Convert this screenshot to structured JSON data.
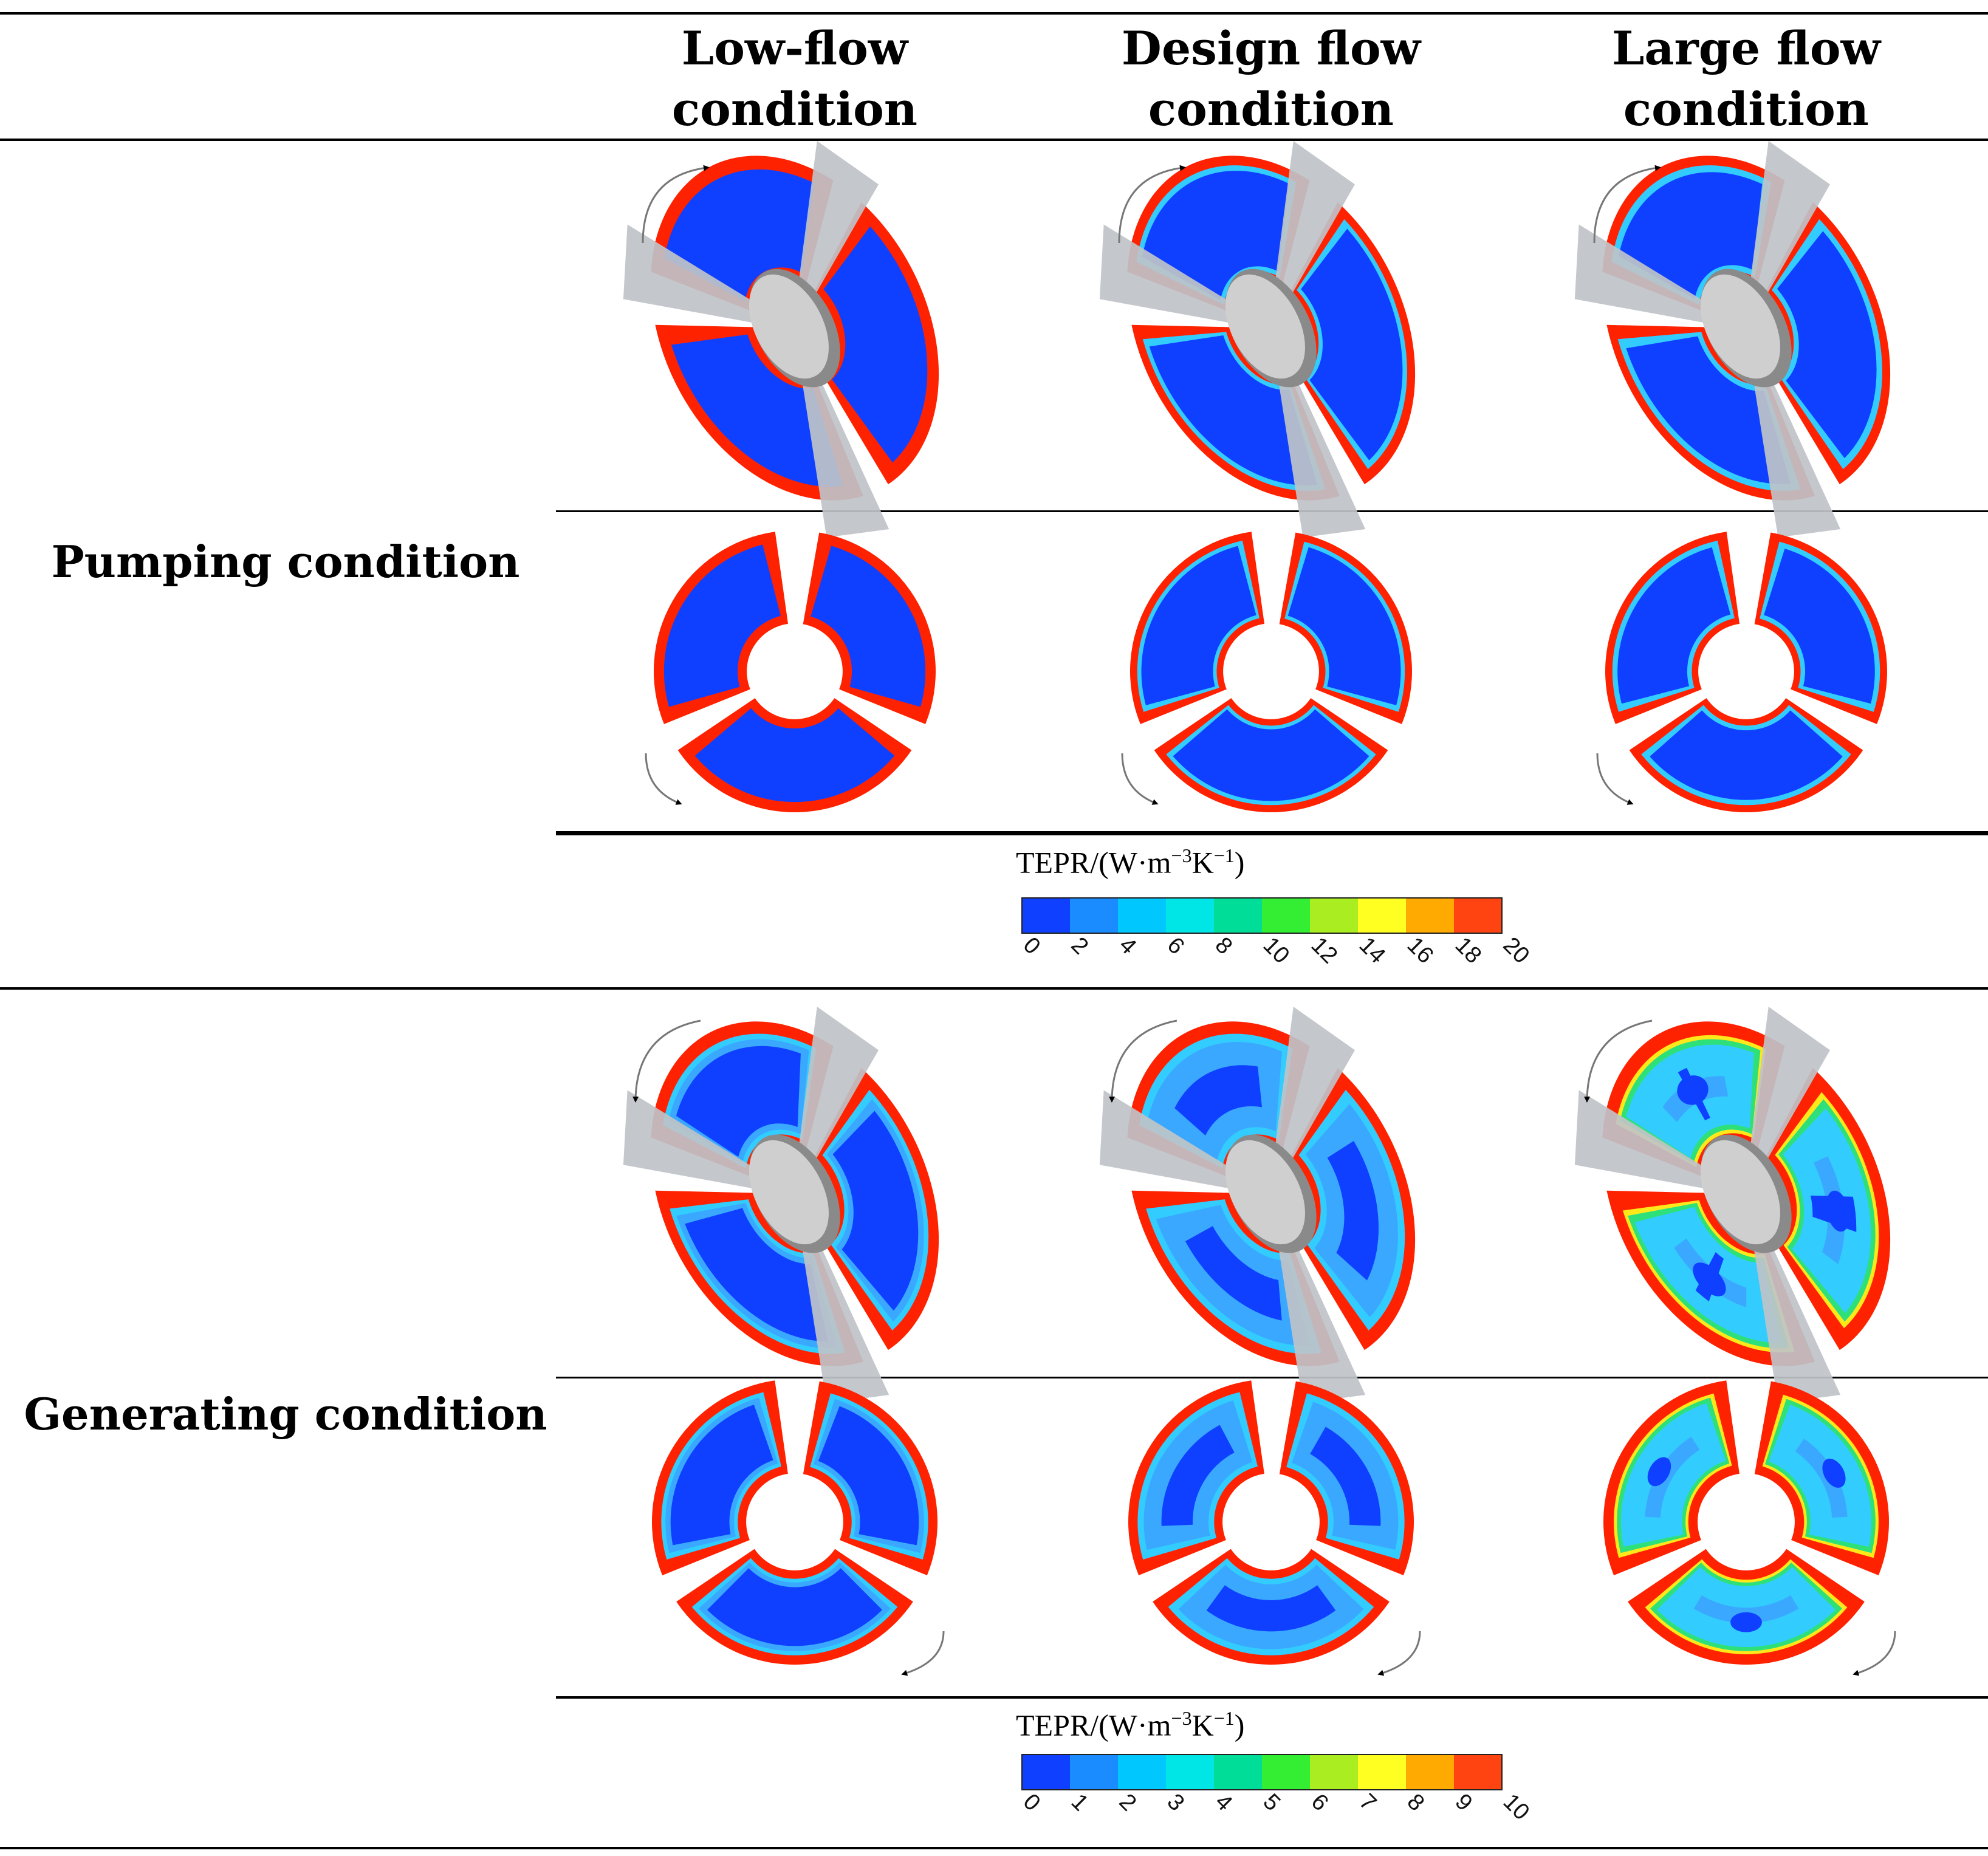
{
  "columns": [
    {
      "line1": "Low-flow",
      "line2": "condition"
    },
    {
      "line1": "Design flow",
      "line2": "condition"
    },
    {
      "line1": "Large flow",
      "line2": "condition"
    }
  ],
  "rows": {
    "pumping": {
      "label": "Pumping condition"
    },
    "generating": {
      "label": "Generating condition"
    }
  },
  "colorbars": [
    {
      "title": "TEPR/(W·m",
      "exp1": "−3",
      "mid": "K",
      "exp2": "−1",
      "close": ")",
      "ticks": [
        "0",
        "2",
        "4",
        "6",
        "8",
        "10",
        "12",
        "14",
        "16",
        "18",
        "20"
      ]
    },
    {
      "title": "TEPR/(W·m",
      "exp1": "−3",
      "mid": "K",
      "exp2": "−1",
      "close": ")",
      "ticks": [
        "0",
        "1",
        "2",
        "3",
        "4",
        "5",
        "6",
        "7",
        "8",
        "9",
        "10"
      ]
    }
  ],
  "palette": [
    "#1040ff",
    "#1a8cff",
    "#00c8ff",
    "#00e6e6",
    "#00dd99",
    "#33ee33",
    "#aaee22",
    "#ffff22",
    "#ffaa00",
    "#ff4411"
  ],
  "colors": {
    "deep": "#1040ff",
    "mid": "#3aa8ff",
    "light": "#33ccff",
    "green": "#2ee07a",
    "yellow": "#ffe81a",
    "red": "#ff2200",
    "blade": "#bfc3c8",
    "hub": "#cfcfcf",
    "arrow": "#000000"
  }
}
